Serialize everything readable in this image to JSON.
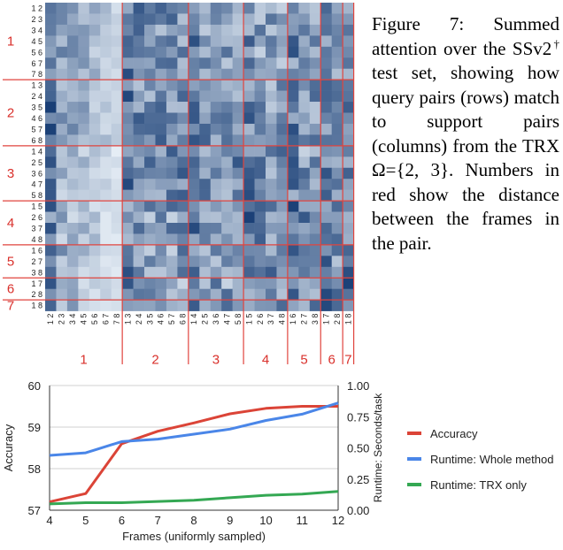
{
  "heatmap": {
    "row_labels": [
      "1 2",
      "2 3",
      "3 4",
      "4 5",
      "5 6",
      "6 7",
      "7 8",
      "1 3",
      "2 4",
      "3 5",
      "4 6",
      "5 7",
      "6 8",
      "1 4",
      "2 5",
      "3 6",
      "4 7",
      "5 8",
      "1 5",
      "2 6",
      "3 7",
      "4 8",
      "1 6",
      "2 7",
      "3 8",
      "1 7",
      "2 8",
      "1 8"
    ],
    "col_labels": [
      "1 2",
      "2 3",
      "3 4",
      "4 5",
      "5 6",
      "6 7",
      "7 8",
      "1 3",
      "2 4",
      "3 5",
      "4 6",
      "5 7",
      "6 8",
      "1 4",
      "2 5",
      "3 6",
      "4 7",
      "5 8",
      "1 5",
      "2 6",
      "3 7",
      "4 8",
      "1 6",
      "2 7",
      "3 8",
      "1 7",
      "2 8",
      "1 8"
    ],
    "group_sizes": [
      7,
      6,
      5,
      4,
      3,
      2,
      1
    ],
    "group_labels": [
      "1",
      "2",
      "3",
      "4",
      "5",
      "6",
      "7"
    ],
    "label_color": "#d9302b",
    "line_color": "#e0443e",
    "cell_dark": "#08306b",
    "cell_light": "#f2f8fd"
  },
  "caption": {
    "prefix": "Figure 7:  Summed attention over the SSv2",
    "dagger": "†",
    "suffix": " test set, showing how query pairs (rows) match to support pairs (columns) from the TRX Ω={2, 3}. Numbers in red show the distance between the frames in the pair."
  },
  "chart_data": {
    "type": "line",
    "x": [
      4,
      5,
      6,
      7,
      8,
      9,
      10,
      11,
      12
    ],
    "xlabel": "Frames (uniformly sampled)",
    "ylabel_left": "Accuracy",
    "ylabel_right": "Runtime: Seconds/task",
    "ylim_left": [
      57,
      60
    ],
    "yticks_left": [
      "57",
      "58",
      "59",
      "60"
    ],
    "ylim_right": [
      0,
      1
    ],
    "yticks_right": [
      "0.00",
      "0.25",
      "0.50",
      "0.75",
      "1.00"
    ],
    "xticks": [
      "4",
      "5",
      "6",
      "7",
      "8",
      "9",
      "10",
      "11",
      "12"
    ],
    "series": [
      {
        "name": "Accuracy",
        "axis": "left",
        "color": "#db4437",
        "values": [
          57.2,
          57.4,
          58.6,
          58.9,
          59.1,
          59.32,
          59.45,
          59.5,
          59.5
        ]
      },
      {
        "name": "Runtime: Whole method",
        "axis": "right",
        "color": "#4a86e8",
        "values": [
          0.44,
          0.46,
          0.55,
          0.57,
          0.61,
          0.65,
          0.72,
          0.77,
          0.86
        ]
      },
      {
        "name": "Runtime: TRX only",
        "axis": "right",
        "color": "#34a853",
        "values": [
          0.05,
          0.06,
          0.06,
          0.07,
          0.08,
          0.1,
          0.12,
          0.13,
          0.15
        ]
      }
    ],
    "legend_position": "right"
  }
}
